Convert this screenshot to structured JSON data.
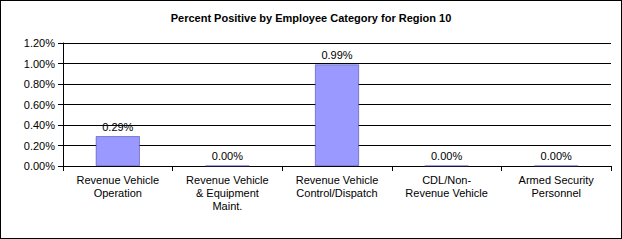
{
  "chart_data": {
    "type": "bar",
    "title": "Percent Positive by Employee Category for Region 10",
    "categories": [
      "Revenue Vehicle\nOperation",
      "Revenue Vehicle\n& Equipment\nMaint.",
      "Revenue Vehicle\nControl/Dispatch",
      "CDL/Non-\nRevenue Vehicle",
      "Armed Security\nPersonnel"
    ],
    "values": [
      0.29,
      0,
      0.99,
      0,
      0
    ],
    "value_labels": [
      "0.29%",
      "0.00%",
      "0.99%",
      "0.00%",
      "0.00%"
    ],
    "data_labels": true,
    "color": "#9999ff",
    "ylim": [
      0,
      1.2
    ],
    "yticks": [
      {
        "value": 0,
        "label": "0.00%"
      },
      {
        "value": 0.2,
        "label": "0.20%"
      },
      {
        "value": 0.4,
        "label": "0.40%"
      },
      {
        "value": 0.6,
        "label": "0.60%"
      },
      {
        "value": 0.8,
        "label": "0.80%"
      },
      {
        "value": 1.0,
        "label": "1.00%"
      },
      {
        "value": 1.2,
        "label": "1.20%"
      }
    ],
    "grid": true
  }
}
